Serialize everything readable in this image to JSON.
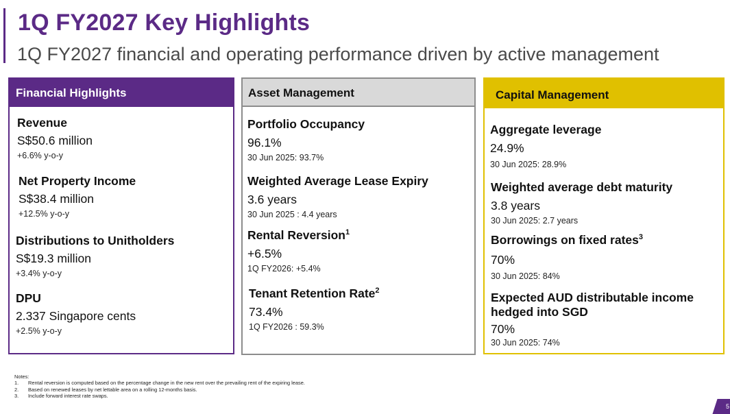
{
  "header": {
    "title": "1Q FY2027 Key Highlights",
    "subtitle": "1Q FY2027 financial and operating performance driven by active management"
  },
  "financial": {
    "heading": "Financial Highlights",
    "items": [
      {
        "label": "Revenue",
        "value": "S$50.6 million",
        "sub": "+6.6% y-o-y"
      },
      {
        "label": "Net Property Income",
        "value": "S$38.4 million",
        "sub": "+12.5% y-o-y"
      },
      {
        "label": "Distributions to Unitholders",
        "value": "S$19.3 million",
        "sub": "+3.4% y-o-y"
      },
      {
        "label": "DPU",
        "value": "2.337 Singapore cents",
        "sub": "+2.5% y-o-y"
      }
    ]
  },
  "asset": {
    "heading": "Asset Management",
    "items": [
      {
        "label": "Portfolio Occupancy",
        "value": "96.1%",
        "sub": "30 Jun 2025: 93.7%"
      },
      {
        "label": "Weighted Average Lease Expiry",
        "value": "3.6 years",
        "sub": "30 Jun 2025 : 4.4 years"
      },
      {
        "label": "Rental Reversion",
        "sup": "1",
        "value": "+6.5%",
        "sub": "1Q FY2026: +5.4%"
      },
      {
        "label": "Tenant Retention Rate",
        "sup": "2",
        "value": "73.4%",
        "sub": "1Q FY2026 : 59.3%"
      }
    ]
  },
  "capital": {
    "heading": "Capital Management",
    "items": [
      {
        "label": "Aggregate leverage",
        "value": "24.9%",
        "sub": "30 Jun 2025: 28.9%"
      },
      {
        "label": "Weighted average debt maturity",
        "value": "3.8 years",
        "sub": "30 Jun 2025: 2.7 years"
      },
      {
        "label": "Borrowings on fixed rates",
        "sup": "3",
        "value": "70%",
        "sub": "30 Jun 2025: 84%"
      },
      {
        "label": "Expected AUD distributable income hedged into SGD",
        "value": "70%",
        "sub": "30 Jun 2025: 74%"
      }
    ]
  },
  "notes": {
    "heading": "Notes:",
    "items": [
      {
        "num": "1.",
        "text": "Rental reversion is computed based on the percentage change in the new rent over the prevailing rent of the expiring lease."
      },
      {
        "num": "2.",
        "text": "Based on renewed leases by net lettable area on a rolling 12-months basis."
      },
      {
        "num": "3.",
        "text": "Include forward interest rate swaps."
      }
    ]
  },
  "page_number": "5",
  "colors": {
    "purple": "#5b2a86",
    "gold": "#e0c000",
    "grey": "#d9d9d9"
  }
}
